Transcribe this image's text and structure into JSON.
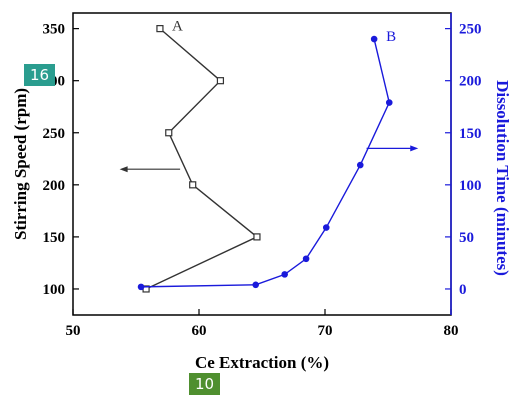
{
  "badges": {
    "left_tag": "16",
    "bottom_tag": "10"
  },
  "chart_data": {
    "type": "line",
    "xlabel": "Ce Extraction (%)",
    "ylabel_left": "Stirring Speed (rpm)",
    "ylabel_right": "Dissolution Time (minutes)",
    "xlim": [
      50,
      80
    ],
    "ylim_left": [
      75,
      365
    ],
    "ylim_right": [
      -25,
      265
    ],
    "xticks": [
      50,
      60,
      70,
      80
    ],
    "yticks_left": [
      100,
      150,
      200,
      250,
      300,
      350
    ],
    "yticks_right": [
      0,
      50,
      100,
      150,
      200,
      250
    ],
    "grid": false,
    "series": [
      {
        "name": "A",
        "axis": "left",
        "color": "#333333",
        "marker": "open-square",
        "x": [
          55.8,
          64.6,
          59.5,
          57.6,
          61.7,
          56.9
        ],
        "y": [
          100,
          150,
          200,
          250,
          300,
          350
        ]
      },
      {
        "name": "B",
        "axis": "right",
        "color": "#1a1adb",
        "marker": "filled-circle",
        "x": [
          55.4,
          64.5,
          66.8,
          68.5,
          70.1,
          72.8,
          75.1,
          73.9
        ],
        "y": [
          2,
          4,
          14,
          29,
          59,
          119,
          179,
          240
        ]
      }
    ],
    "arrows": [
      {
        "series": "A",
        "points_to": "left"
      },
      {
        "series": "B",
        "points_to": "right"
      }
    ]
  }
}
